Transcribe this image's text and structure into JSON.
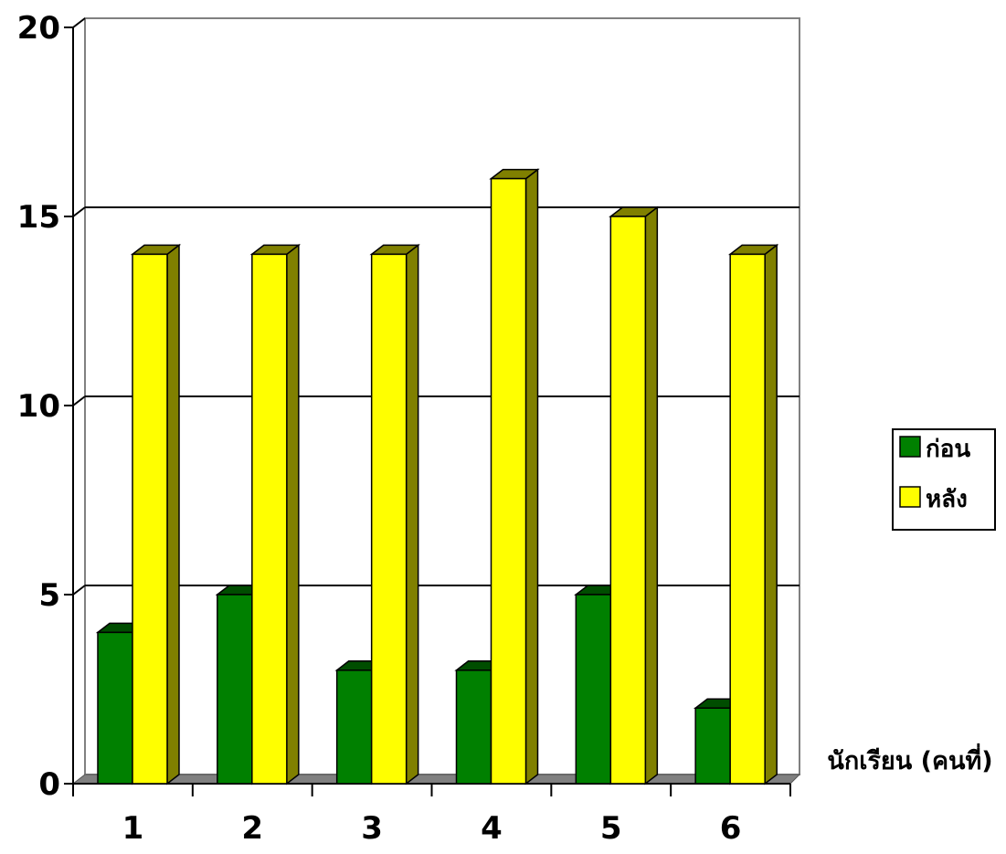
{
  "chart_data": {
    "type": "bar",
    "title": "",
    "xlabel": "นักเรียน (คนที่)",
    "ylabel": "",
    "categories": [
      "1",
      "2",
      "3",
      "4",
      "5",
      "6"
    ],
    "ylim": [
      0,
      20
    ],
    "yticks": [
      "0",
      "5",
      "10",
      "15",
      "20"
    ],
    "grid": true,
    "legend_position": "right",
    "series": [
      {
        "name": "ก่อน",
        "values": [
          4,
          5,
          3,
          3,
          5,
          2
        ],
        "color": "#008000",
        "side_color": "#004d00"
      },
      {
        "name": "หลัง",
        "values": [
          14,
          14,
          14,
          16,
          15,
          14
        ],
        "color": "#ffff00",
        "side_color": "#808000"
      }
    ]
  }
}
